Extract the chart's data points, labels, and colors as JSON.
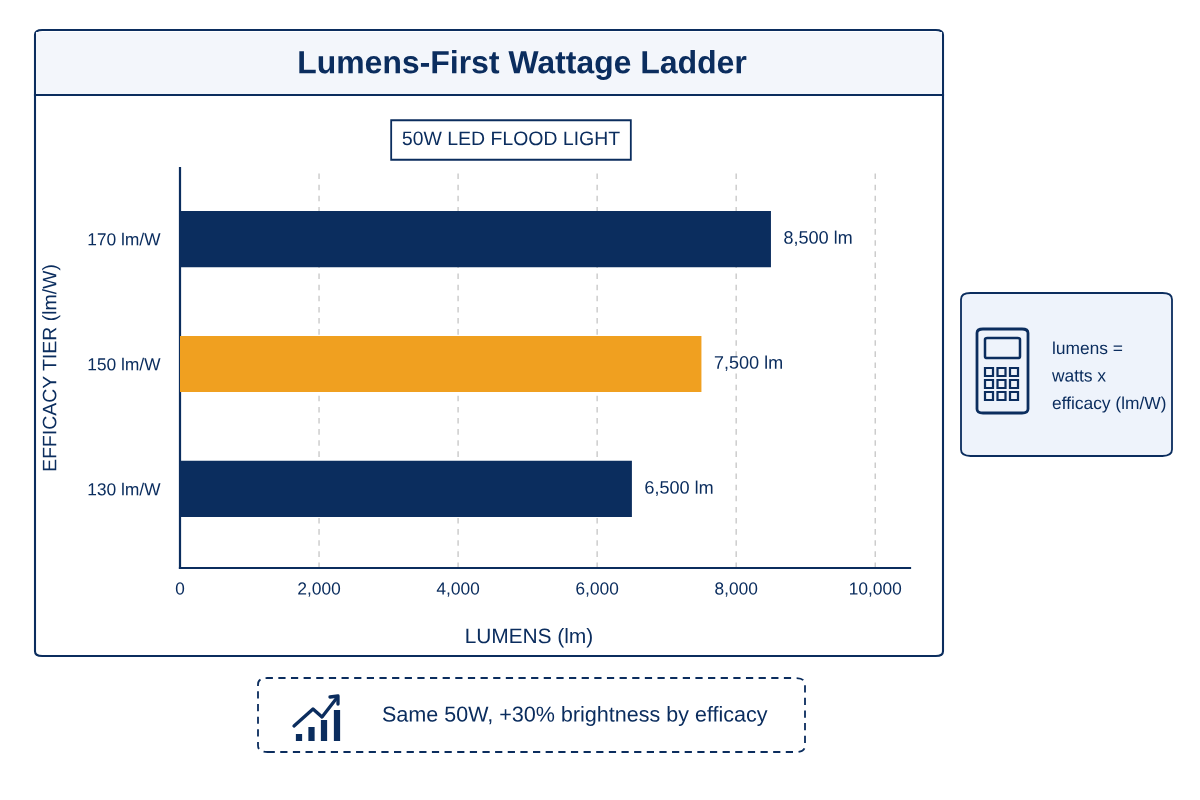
{
  "chart_data": {
    "type": "bar",
    "orientation": "horizontal",
    "title": "Lumens-First Wattage Ladder",
    "subtitle": "50W LED FLOOD LIGHT",
    "xlabel": "LUMENS (lm)",
    "ylabel": "EFFICACY TIER (lm/W)",
    "categories": [
      "170 lm/W",
      "150 lm/W",
      "130 lm/W"
    ],
    "values": [
      8500,
      7500,
      6500
    ],
    "colors": [
      "#0b2d5e",
      "#f0a020",
      "#0b2d5e"
    ],
    "value_labels": [
      "8,500 lm",
      "7,500 lm",
      "6,500 lm"
    ],
    "xlim": [
      0,
      10500
    ],
    "xticks": [
      0,
      {
        "value": 2000,
        "label": "2,000"
      },
      {
        "value": 4000,
        "label": "4,000"
      },
      {
        "value": 6000,
        "label": "6,000"
      },
      {
        "value": 8000,
        "label": "8,000"
      },
      {
        "value": 10000,
        "label": "10,000"
      }
    ],
    "grid": "x",
    "annotations": [
      "lumens =\nwatts x\nefficacy (lm/W)",
      "Same 50W, +30% brightness by efficacy"
    ]
  }
}
